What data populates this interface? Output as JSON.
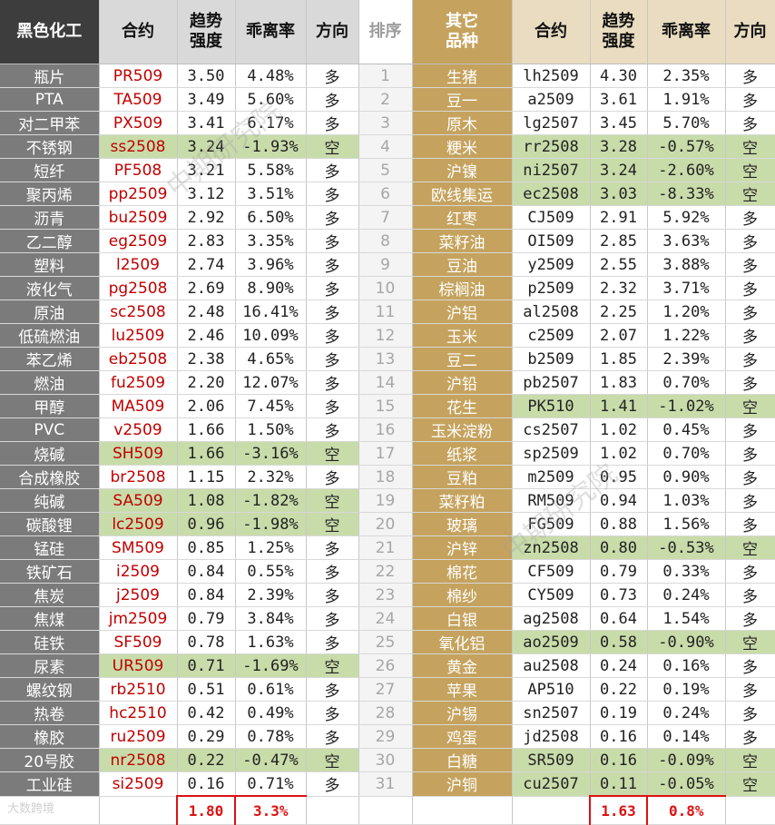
{
  "header": {
    "left_category": "黑色化工",
    "contract": "合约",
    "strength": "趋势强度",
    "deviation": "乖离率",
    "direction": "方向",
    "rank": "排序",
    "right_category": "其它品种"
  },
  "left_rows": [
    {
      "name": "瓶片",
      "code": "PR509",
      "strength": "3.50",
      "deviation": "4.48%",
      "direction": "多"
    },
    {
      "name": "PTA",
      "code": "TA509",
      "strength": "3.49",
      "deviation": "5.60%",
      "direction": "多"
    },
    {
      "name": "对二甲苯",
      "code": "PX509",
      "strength": "3.41",
      "deviation": "6.17%",
      "direction": "多"
    },
    {
      "name": "不锈钢",
      "code": "ss2508",
      "strength": "3.24",
      "deviation": "-1.93%",
      "direction": "空"
    },
    {
      "name": "短纤",
      "code": "PF508",
      "strength": "3.21",
      "deviation": "5.58%",
      "direction": "多"
    },
    {
      "name": "聚丙烯",
      "code": "pp2509",
      "strength": "3.12",
      "deviation": "3.51%",
      "direction": "多"
    },
    {
      "name": "沥青",
      "code": "bu2509",
      "strength": "2.92",
      "deviation": "6.50%",
      "direction": "多"
    },
    {
      "name": "乙二醇",
      "code": "eg2509",
      "strength": "2.83",
      "deviation": "3.35%",
      "direction": "多"
    },
    {
      "name": "塑料",
      "code": "l2509",
      "strength": "2.74",
      "deviation": "3.96%",
      "direction": "多"
    },
    {
      "name": "液化气",
      "code": "pg2508",
      "strength": "2.69",
      "deviation": "8.90%",
      "direction": "多"
    },
    {
      "name": "原油",
      "code": "sc2508",
      "strength": "2.48",
      "deviation": "16.41%",
      "direction": "多"
    },
    {
      "name": "低硫燃油",
      "code": "lu2509",
      "strength": "2.46",
      "deviation": "10.09%",
      "direction": "多"
    },
    {
      "name": "苯乙烯",
      "code": "eb2508",
      "strength": "2.38",
      "deviation": "4.65%",
      "direction": "多"
    },
    {
      "name": "燃油",
      "code": "fu2509",
      "strength": "2.20",
      "deviation": "12.07%",
      "direction": "多"
    },
    {
      "name": "甲醇",
      "code": "MA509",
      "strength": "2.06",
      "deviation": "7.45%",
      "direction": "多"
    },
    {
      "name": "PVC",
      "code": "v2509",
      "strength": "1.66",
      "deviation": "1.50%",
      "direction": "多"
    },
    {
      "name": "烧碱",
      "code": "SH509",
      "strength": "1.66",
      "deviation": "-3.16%",
      "direction": "空"
    },
    {
      "name": "合成橡胶",
      "code": "br2508",
      "strength": "1.15",
      "deviation": "2.32%",
      "direction": "多"
    },
    {
      "name": "纯碱",
      "code": "SA509",
      "strength": "1.08",
      "deviation": "-1.82%",
      "direction": "空"
    },
    {
      "name": "碳酸锂",
      "code": "lc2509",
      "strength": "0.96",
      "deviation": "-1.98%",
      "direction": "空"
    },
    {
      "name": "锰硅",
      "code": "SM509",
      "strength": "0.85",
      "deviation": "1.25%",
      "direction": "多"
    },
    {
      "name": "铁矿石",
      "code": "i2509",
      "strength": "0.84",
      "deviation": "0.55%",
      "direction": "多"
    },
    {
      "name": "焦炭",
      "code": "j2509",
      "strength": "0.84",
      "deviation": "2.39%",
      "direction": "多"
    },
    {
      "name": "焦煤",
      "code": "jm2509",
      "strength": "0.79",
      "deviation": "3.84%",
      "direction": "多"
    },
    {
      "name": "硅铁",
      "code": "SF509",
      "strength": "0.78",
      "deviation": "1.63%",
      "direction": "多"
    },
    {
      "name": "尿素",
      "code": "UR509",
      "strength": "0.71",
      "deviation": "-1.69%",
      "direction": "空"
    },
    {
      "name": "螺纹钢",
      "code": "rb2510",
      "strength": "0.51",
      "deviation": "0.61%",
      "direction": "多"
    },
    {
      "name": "热卷",
      "code": "hc2510",
      "strength": "0.42",
      "deviation": "0.49%",
      "direction": "多"
    },
    {
      "name": "橡胶",
      "code": "ru2509",
      "strength": "0.29",
      "deviation": "0.78%",
      "direction": "多"
    },
    {
      "name": "20号胶",
      "code": "nr2508",
      "strength": "0.22",
      "deviation": "-0.47%",
      "direction": "空"
    },
    {
      "name": "工业硅",
      "code": "si2509",
      "strength": "0.16",
      "deviation": "0.71%",
      "direction": "多"
    }
  ],
  "right_rows": [
    {
      "name": "生猪",
      "code": "lh2509",
      "strength": "4.30",
      "deviation": "2.35%",
      "direction": "多"
    },
    {
      "name": "豆一",
      "code": "a2509",
      "strength": "3.61",
      "deviation": "1.91%",
      "direction": "多"
    },
    {
      "name": "原木",
      "code": "lg2507",
      "strength": "3.45",
      "deviation": "5.70%",
      "direction": "多"
    },
    {
      "name": "粳米",
      "code": "rr2508",
      "strength": "3.28",
      "deviation": "-0.57%",
      "direction": "空"
    },
    {
      "name": "沪镍",
      "code": "ni2507",
      "strength": "3.24",
      "deviation": "-2.60%",
      "direction": "空"
    },
    {
      "name": "欧线集运",
      "code": "ec2508",
      "strength": "3.03",
      "deviation": "-8.33%",
      "direction": "空"
    },
    {
      "name": "红枣",
      "code": "CJ509",
      "strength": "2.91",
      "deviation": "5.92%",
      "direction": "多"
    },
    {
      "name": "菜籽油",
      "code": "OI509",
      "strength": "2.85",
      "deviation": "3.63%",
      "direction": "多"
    },
    {
      "name": "豆油",
      "code": "y2509",
      "strength": "2.55",
      "deviation": "3.88%",
      "direction": "多"
    },
    {
      "name": "棕榈油",
      "code": "p2509",
      "strength": "2.32",
      "deviation": "3.71%",
      "direction": "多"
    },
    {
      "name": "沪铝",
      "code": "al2508",
      "strength": "2.25",
      "deviation": "1.20%",
      "direction": "多"
    },
    {
      "name": "玉米",
      "code": "c2509",
      "strength": "2.07",
      "deviation": "1.22%",
      "direction": "多"
    },
    {
      "name": "豆二",
      "code": "b2509",
      "strength": "1.85",
      "deviation": "2.39%",
      "direction": "多"
    },
    {
      "name": "沪铅",
      "code": "pb2507",
      "strength": "1.83",
      "deviation": "0.70%",
      "direction": "多"
    },
    {
      "name": "花生",
      "code": "PK510",
      "strength": "1.41",
      "deviation": "-1.02%",
      "direction": "空"
    },
    {
      "name": "玉米淀粉",
      "code": "cs2507",
      "strength": "1.02",
      "deviation": "0.45%",
      "direction": "多"
    },
    {
      "name": "纸浆",
      "code": "sp2509",
      "strength": "1.02",
      "deviation": "0.70%",
      "direction": "多"
    },
    {
      "name": "豆粕",
      "code": "m2509",
      "strength": "0.95",
      "deviation": "0.90%",
      "direction": "多"
    },
    {
      "name": "菜籽粕",
      "code": "RM509",
      "strength": "0.94",
      "deviation": "1.03%",
      "direction": "多"
    },
    {
      "name": "玻璃",
      "code": "FG509",
      "strength": "0.88",
      "deviation": "1.56%",
      "direction": "多"
    },
    {
      "name": "沪锌",
      "code": "zn2508",
      "strength": "0.80",
      "deviation": "-0.53%",
      "direction": "空"
    },
    {
      "name": "棉花",
      "code": "CF509",
      "strength": "0.79",
      "deviation": "0.33%",
      "direction": "多"
    },
    {
      "name": "棉纱",
      "code": "CY509",
      "strength": "0.73",
      "deviation": "0.24%",
      "direction": "多"
    },
    {
      "name": "白银",
      "code": "ag2508",
      "strength": "0.64",
      "deviation": "1.54%",
      "direction": "多"
    },
    {
      "name": "氧化铝",
      "code": "ao2509",
      "strength": "0.58",
      "deviation": "-0.90%",
      "direction": "空"
    },
    {
      "name": "黄金",
      "code": "au2508",
      "strength": "0.24",
      "deviation": "0.16%",
      "direction": "多"
    },
    {
      "name": "苹果",
      "code": "AP510",
      "strength": "0.22",
      "deviation": "0.19%",
      "direction": "多"
    },
    {
      "name": "沪锡",
      "code": "sn2507",
      "strength": "0.19",
      "deviation": "0.24%",
      "direction": "多"
    },
    {
      "name": "鸡蛋",
      "code": "jd2508",
      "strength": "0.16",
      "deviation": "0.14%",
      "direction": "多"
    },
    {
      "name": "白糖",
      "code": "SR509",
      "strength": "0.16",
      "deviation": "-0.09%",
      "direction": "空"
    },
    {
      "name": "沪铜",
      "code": "cu2507",
      "strength": "0.11",
      "deviation": "-0.05%",
      "direction": "空"
    }
  ],
  "left_summary": {
    "strength": "1.80",
    "deviation": "3.3%"
  },
  "right_summary": {
    "strength": "1.63",
    "deviation": "0.8%"
  },
  "watermark": "中期研究院",
  "logo_text": "大数跨境",
  "colors": {
    "short_highlight": "#c8dcaa",
    "left_contract_text": "#c00000",
    "gold": "#c5a35e",
    "summary_red": "#dd1111"
  }
}
